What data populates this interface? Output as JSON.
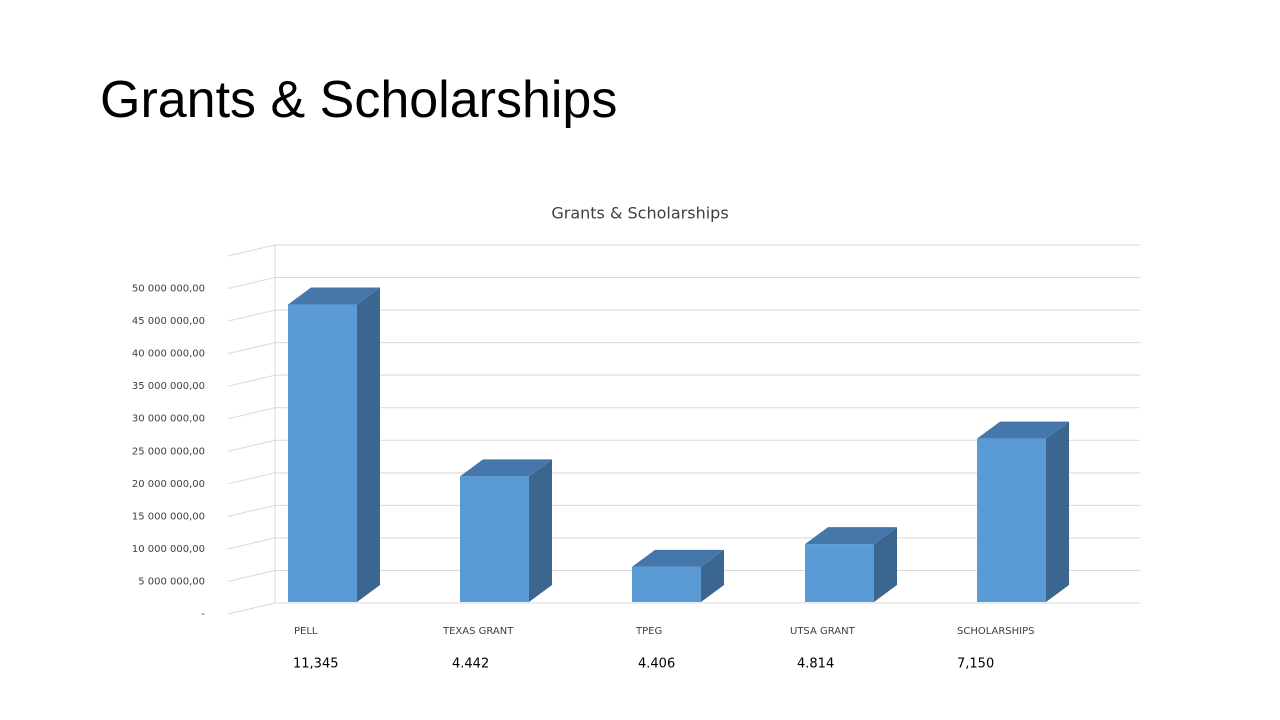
{
  "slide_title": "Grants & Scholarships",
  "chart_data": {
    "type": "bar3d",
    "title": "Grants & Scholarships",
    "categories": [
      "PELL",
      "TEXAS GRANT",
      "TPEG",
      "UTSA GRANT",
      "SCHOLARSHIPS"
    ],
    "values": [
      45700000,
      19300000,
      5400000,
      8900000,
      25100000
    ],
    "color": "#5b9bd5",
    "ylim": [
      0,
      55000000
    ],
    "yticks": [
      {
        "value": 0,
        "label": "-"
      },
      {
        "value": 5000000,
        "label": "5 000 000,00"
      },
      {
        "value": 10000000,
        "label": "10 000 000,00"
      },
      {
        "value": 15000000,
        "label": "15 000 000,00"
      },
      {
        "value": 20000000,
        "label": "20 000 000,00"
      },
      {
        "value": 25000000,
        "label": "25 000 000,00"
      },
      {
        "value": 30000000,
        "label": "30 000 000,00"
      },
      {
        "value": 35000000,
        "label": "35 000 000,00"
      },
      {
        "value": 40000000,
        "label": "40 000 000,00"
      },
      {
        "value": 45000000,
        "label": "45 000 000,00"
      },
      {
        "value": 50000000,
        "label": "50 000 000,00"
      }
    ],
    "grid": true
  },
  "annotations": [
    "11,345",
    "4.442",
    "4.406",
    "4.814",
    "7,150"
  ]
}
